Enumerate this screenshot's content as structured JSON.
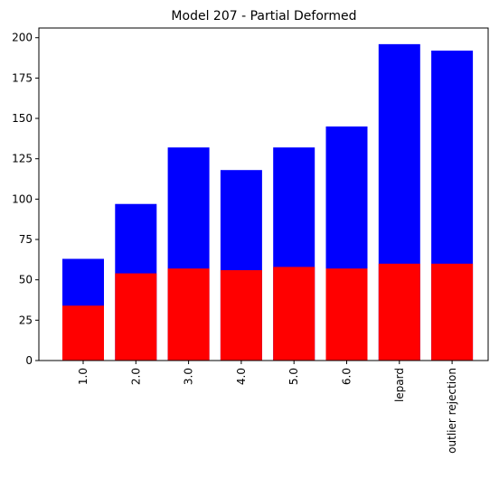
{
  "chart_data": {
    "type": "bar",
    "stacked": false,
    "overlaid": true,
    "title": "Model 207 - Partial Deformed",
    "xlabel": "",
    "ylabel": "",
    "categories": [
      "1.0",
      "2.0",
      "3.0",
      "4.0",
      "5.0",
      "6.0",
      "lepard",
      "outlier rejection"
    ],
    "series": [
      {
        "color": "#0000ff",
        "values": [
          63,
          97,
          132,
          118,
          132,
          145,
          196,
          192
        ]
      },
      {
        "color": "#ff0000",
        "values": [
          34,
          54,
          57,
          56,
          58,
          57,
          60,
          60
        ]
      }
    ],
    "ylim": [
      0,
      206
    ],
    "yticks": [
      0,
      25,
      50,
      75,
      100,
      125,
      150,
      175,
      200
    ],
    "ytick_labels": [
      "0",
      "25",
      "50",
      "75",
      "100",
      "125",
      "150",
      "175",
      "200"
    ],
    "grid": false,
    "legend": "none"
  }
}
